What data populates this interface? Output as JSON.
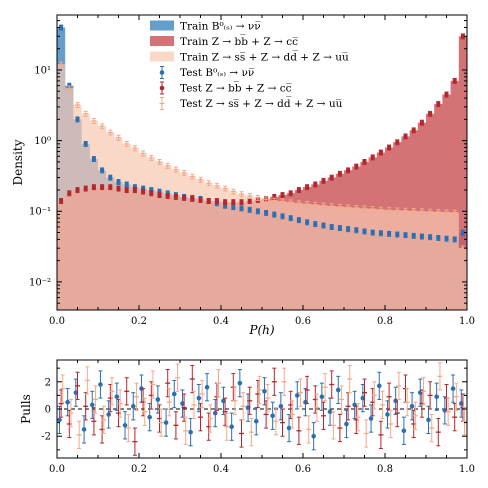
{
  "chart_data": [
    {
      "type": "histogram",
      "xlabel": "P(h)",
      "ylabel": "Density",
      "xlim": [
        0,
        1
      ],
      "ylim": [
        0.004,
        60
      ],
      "yscale": "log",
      "x_ticks": [
        "0.0",
        "0.2",
        "0.4",
        "0.6",
        "0.8",
        "1.0"
      ],
      "y_ticks": [
        {
          "value": 0.01,
          "label": "10⁻²"
        },
        {
          "value": 0.1,
          "label": "10⁻¹"
        },
        {
          "value": 1,
          "label": "10⁰"
        },
        {
          "value": 10,
          "label": "10¹"
        }
      ],
      "legend_position": "top-center",
      "bins": 50,
      "series": [
        {
          "name": "Train B⁰₍ₛ₎ → νν̅",
          "kind": "train",
          "color": "#4a8cc2",
          "values": [
            40,
            6.0,
            2.0,
            0.9,
            0.55,
            0.38,
            0.3,
            0.26,
            0.24,
            0.22,
            0.21,
            0.2,
            0.19,
            0.18,
            0.17,
            0.16,
            0.155,
            0.15,
            0.14,
            0.13,
            0.12,
            0.115,
            0.11,
            0.105,
            0.1,
            0.095,
            0.09,
            0.085,
            0.08,
            0.075,
            0.07,
            0.066,
            0.063,
            0.06,
            0.058,
            0.056,
            0.054,
            0.052,
            0.05,
            0.049,
            0.048,
            0.047,
            0.046,
            0.045,
            0.044,
            0.043,
            0.042,
            0.041,
            0.04,
            0.05
          ]
        },
        {
          "name": "Train Z → bb̅ + Z → cc̅",
          "kind": "train",
          "color": "#cc5a5e",
          "values": [
            0.14,
            0.18,
            0.2,
            0.21,
            0.22,
            0.22,
            0.22,
            0.21,
            0.2,
            0.2,
            0.19,
            0.18,
            0.17,
            0.165,
            0.16,
            0.155,
            0.15,
            0.145,
            0.14,
            0.14,
            0.135,
            0.135,
            0.135,
            0.14,
            0.145,
            0.15,
            0.16,
            0.17,
            0.18,
            0.2,
            0.22,
            0.24,
            0.27,
            0.3,
            0.34,
            0.38,
            0.43,
            0.5,
            0.58,
            0.68,
            0.8,
            0.95,
            1.15,
            1.4,
            1.8,
            2.4,
            3.3,
            4.5,
            7.0,
            30
          ]
        },
        {
          "name": "Train Z → ss̅ + Z → dd̅ + Z → uu̅",
          "kind": "train",
          "color": "#f8c8b0",
          "values": [
            12,
            5.5,
            3.2,
            2.4,
            1.9,
            1.6,
            1.3,
            1.1,
            0.9,
            0.78,
            0.66,
            0.57,
            0.5,
            0.44,
            0.39,
            0.35,
            0.31,
            0.28,
            0.25,
            0.23,
            0.21,
            0.19,
            0.175,
            0.165,
            0.155,
            0.148,
            0.142,
            0.138,
            0.134,
            0.13,
            0.127,
            0.124,
            0.121,
            0.118,
            0.116,
            0.114,
            0.112,
            0.11,
            0.108,
            0.106,
            0.104,
            0.103,
            0.102,
            0.101,
            0.1,
            0.099,
            0.098,
            0.097,
            0.096,
            0.03
          ]
        },
        {
          "name": "Test B⁰₍ₛ₎ → νν̅",
          "kind": "test",
          "color": "#2b6fb3"
        },
        {
          "name": "Test Z → bb̅ + Z → cc̅",
          "kind": "test",
          "color": "#b3262e"
        },
        {
          "name": "Test Z → ss̅ + Z → dd̅ + Z → uu̅",
          "kind": "test",
          "color": "#f2a98a"
        }
      ]
    },
    {
      "type": "scatter",
      "xlabel": "",
      "ylabel": "Pulls",
      "xlim": [
        0,
        1
      ],
      "ylim": [
        -3.6,
        3.6
      ],
      "x_ticks": [
        "0.0",
        "0.2",
        "0.4",
        "0.6",
        "0.8",
        "1.0"
      ],
      "y_ticks": [
        -2,
        0,
        2
      ],
      "reference_line": 0,
      "series": [
        {
          "name": "Test B⁰₍ₛ₎ → νν̅",
          "color": "#2b6fb3",
          "values": [
            -0.8,
            0.5,
            1.2,
            -1.5,
            0.3,
            1.8,
            -0.4,
            0.9,
            -1.2,
            0.2,
            1.5,
            -0.6,
            0.7,
            -1.0,
            1.1,
            0.4,
            -1.7,
            0.8,
            1.6,
            -0.3,
            0.6,
            -1.3,
            1.9,
            0.1,
            -0.9,
            1.3,
            -0.5,
            0.2,
            -1.4,
            1.0,
            0.5,
            -2.0,
            0.9,
            -0.2,
            1.4,
            -1.1,
            0.3,
            0.8,
            -0.7,
            1.7,
            -0.4,
            0.6,
            -1.6,
            0.2,
            1.2,
            -0.8,
            0.9,
            -0.1,
            1.5,
            0.4
          ]
        },
        {
          "name": "Test Z → bb̅ + Z → cc̅",
          "color": "#b3262e",
          "values": [
            0.4,
            -1.1,
            1.7,
            0.2,
            -0.9,
            -1.5,
            0.8,
            -0.3,
            1.3,
            -2.4,
            0.5,
            1.0,
            -0.7,
            1.9,
            -1.2,
            0.1,
            2.2,
            -0.6,
            -1.3,
            0.9,
            -0.2,
            1.6,
            -1.8,
            0.6,
            1.1,
            -0.4,
            2.0,
            -1.0,
            0.3,
            -1.6,
            1.4,
            0.7,
            -0.5,
            1.8,
            -1.4,
            0.2,
            -0.8,
            1.2,
            0.5,
            -1.9,
            0.9,
            -0.3,
            1.5,
            -1.1,
            0.4,
            1.0,
            -1.7,
            0.8,
            -0.6,
            0.1
          ]
        },
        {
          "name": "Test Z → ss̅ + Z → dd̅ + Z → uu̅",
          "color": "#f2a98a",
          "values": [
            1.5,
            -0.3,
            -1.9,
            2.1,
            0.7,
            -0.8,
            1.3,
            0.4,
            -1.4,
            0.9,
            -0.2,
            1.8,
            -1.0,
            0.5,
            2.3,
            -1.6,
            0.3,
            1.1,
            -0.7,
            1.9,
            -1.3,
            0.6,
            0.2,
            -1.7,
            1.4,
            0.8,
            -0.9,
            2.0,
            -0.4,
            1.2,
            -1.5,
            0.1,
            1.6,
            -1.2,
            0.7,
            2.2,
            -0.6,
            -1.8,
            1.0,
            0.3,
            -1.1,
            1.7,
            0.5,
            -0.5,
            1.3,
            -1.4,
            2.4,
            -0.2,
            0.9,
            -0.9
          ]
        }
      ]
    }
  ]
}
